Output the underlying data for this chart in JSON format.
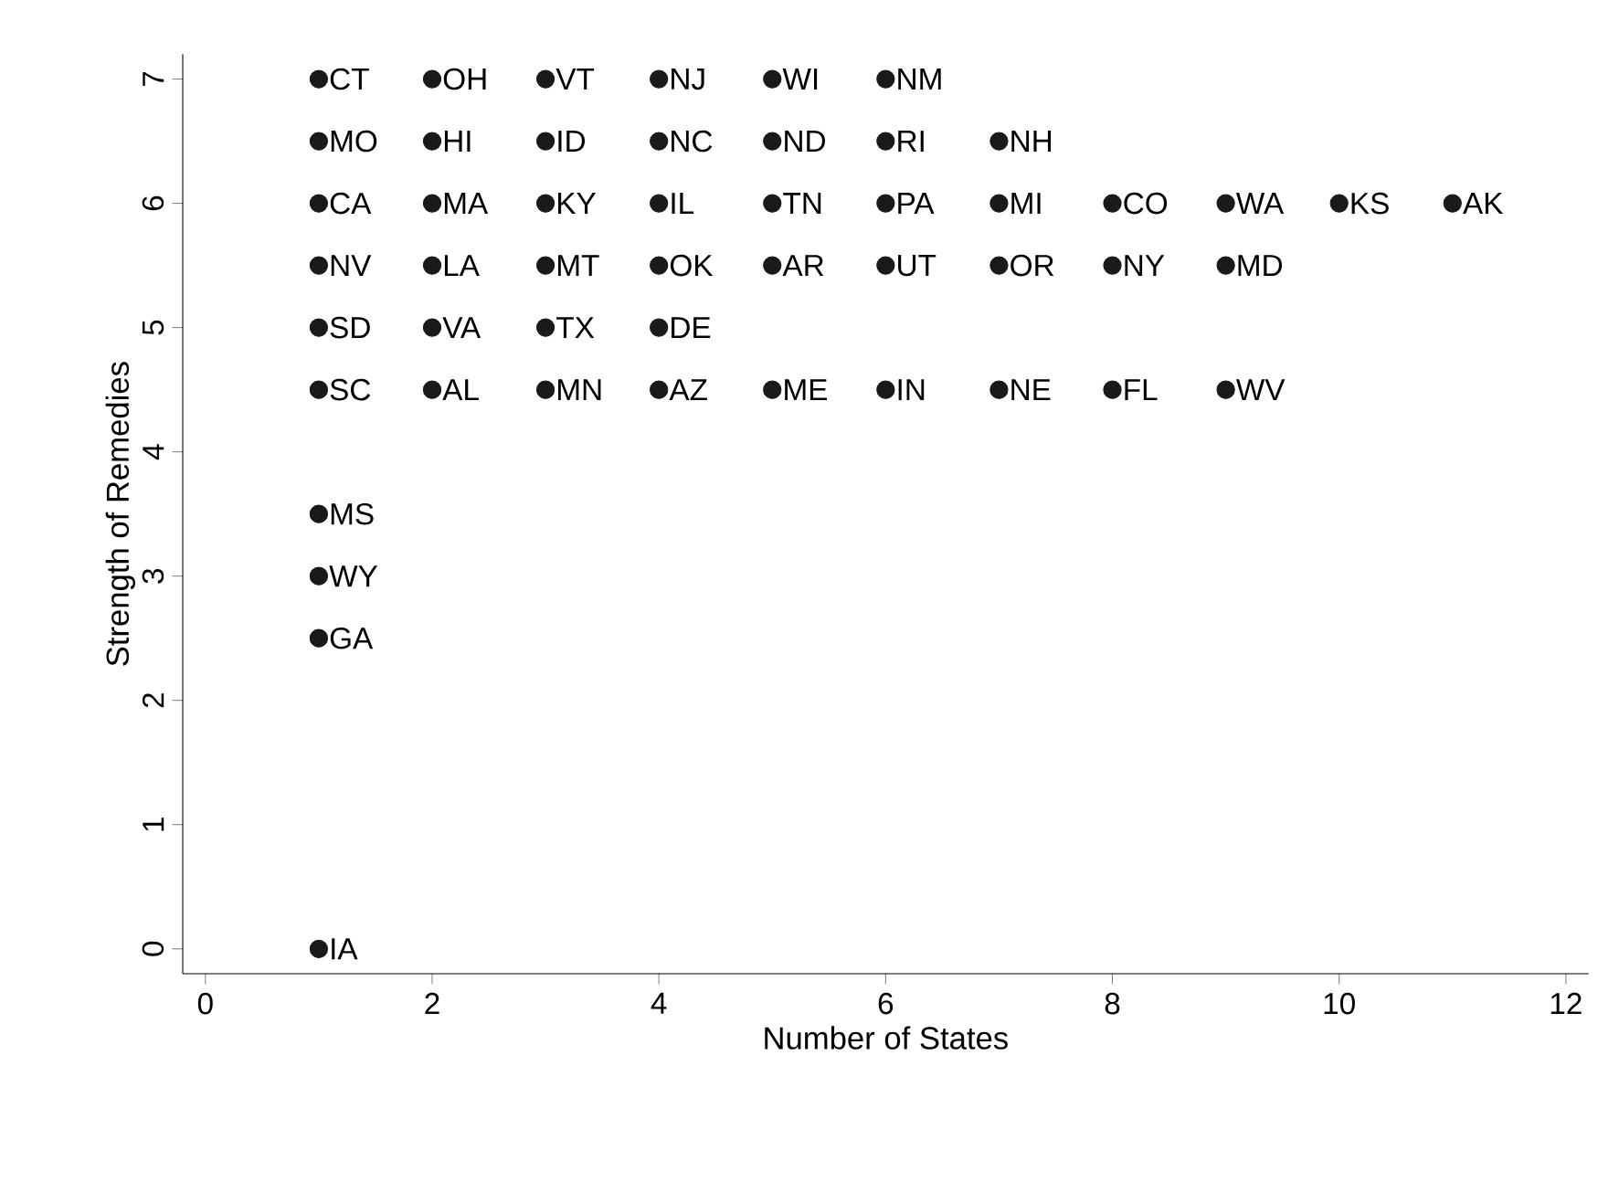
{
  "chart_data": {
    "type": "scatter",
    "xlabel": "Number of States",
    "ylabel": "Strength of Remedies",
    "xlim": [
      -0.2,
      12.2
    ],
    "ylim": [
      -0.2,
      7.2
    ],
    "xticks": [
      0,
      2,
      4,
      6,
      8,
      10,
      12
    ],
    "yticks": [
      0,
      1,
      2,
      3,
      4,
      5,
      6,
      7
    ],
    "grid": false,
    "marker": "circle",
    "series": [
      {
        "color": "#1a1a1a",
        "x": [
          1,
          2,
          3,
          4,
          5,
          6,
          1,
          2,
          3,
          4,
          5,
          6,
          7,
          1,
          2,
          3,
          4,
          5,
          6,
          7,
          8,
          9,
          10,
          11,
          1,
          2,
          3,
          4,
          5,
          6,
          7,
          8,
          9,
          1,
          2,
          3,
          4,
          1,
          2,
          3,
          4,
          5,
          6,
          7,
          8,
          9,
          1,
          1,
          1,
          1
        ],
        "values": [
          7,
          7,
          7,
          7,
          7,
          7,
          6.5,
          6.5,
          6.5,
          6.5,
          6.5,
          6.5,
          6.5,
          6,
          6,
          6,
          6,
          6,
          6,
          6,
          6,
          6,
          6,
          6,
          5.5,
          5.5,
          5.5,
          5.5,
          5.5,
          5.5,
          5.5,
          5.5,
          5.5,
          5,
          5,
          5,
          5,
          4.5,
          4.5,
          4.5,
          4.5,
          4.5,
          4.5,
          4.5,
          4.5,
          4.5,
          3.5,
          3,
          2.5,
          0
        ]
      }
    ],
    "annotations": [
      {
        "text": "CT",
        "x": 1,
        "y": 7
      },
      {
        "text": "OH",
        "x": 2,
        "y": 7
      },
      {
        "text": "VT",
        "x": 3,
        "y": 7
      },
      {
        "text": "NJ",
        "x": 4,
        "y": 7
      },
      {
        "text": "WI",
        "x": 5,
        "y": 7
      },
      {
        "text": "NM",
        "x": 6,
        "y": 7
      },
      {
        "text": "MO",
        "x": 1,
        "y": 6.5
      },
      {
        "text": "HI",
        "x": 2,
        "y": 6.5
      },
      {
        "text": "ID",
        "x": 3,
        "y": 6.5
      },
      {
        "text": "NC",
        "x": 4,
        "y": 6.5
      },
      {
        "text": "ND",
        "x": 5,
        "y": 6.5
      },
      {
        "text": "RI",
        "x": 6,
        "y": 6.5
      },
      {
        "text": "NH",
        "x": 7,
        "y": 6.5
      },
      {
        "text": "CA",
        "x": 1,
        "y": 6
      },
      {
        "text": "MA",
        "x": 2,
        "y": 6
      },
      {
        "text": "KY",
        "x": 3,
        "y": 6
      },
      {
        "text": "IL",
        "x": 4,
        "y": 6
      },
      {
        "text": "TN",
        "x": 5,
        "y": 6
      },
      {
        "text": "PA",
        "x": 6,
        "y": 6
      },
      {
        "text": "MI",
        "x": 7,
        "y": 6
      },
      {
        "text": "CO",
        "x": 8,
        "y": 6
      },
      {
        "text": "WA",
        "x": 9,
        "y": 6
      },
      {
        "text": "KS",
        "x": 10,
        "y": 6
      },
      {
        "text": "AK",
        "x": 11,
        "y": 6
      },
      {
        "text": "NV",
        "x": 1,
        "y": 5.5
      },
      {
        "text": "LA",
        "x": 2,
        "y": 5.5
      },
      {
        "text": "MT",
        "x": 3,
        "y": 5.5
      },
      {
        "text": "OK",
        "x": 4,
        "y": 5.5
      },
      {
        "text": "AR",
        "x": 5,
        "y": 5.5
      },
      {
        "text": "UT",
        "x": 6,
        "y": 5.5
      },
      {
        "text": "OR",
        "x": 7,
        "y": 5.5
      },
      {
        "text": "NY",
        "x": 8,
        "y": 5.5
      },
      {
        "text": "MD",
        "x": 9,
        "y": 5.5
      },
      {
        "text": "SD",
        "x": 1,
        "y": 5
      },
      {
        "text": "VA",
        "x": 2,
        "y": 5
      },
      {
        "text": "TX",
        "x": 3,
        "y": 5
      },
      {
        "text": "DE",
        "x": 4,
        "y": 5
      },
      {
        "text": "SC",
        "x": 1,
        "y": 4.5
      },
      {
        "text": "AL",
        "x": 2,
        "y": 4.5
      },
      {
        "text": "MN",
        "x": 3,
        "y": 4.5
      },
      {
        "text": "AZ",
        "x": 4,
        "y": 4.5
      },
      {
        "text": "ME",
        "x": 5,
        "y": 4.5
      },
      {
        "text": "IN",
        "x": 6,
        "y": 4.5
      },
      {
        "text": "NE",
        "x": 7,
        "y": 4.5
      },
      {
        "text": "FL",
        "x": 8,
        "y": 4.5
      },
      {
        "text": "WV",
        "x": 9,
        "y": 4.5
      },
      {
        "text": "MS",
        "x": 1,
        "y": 3.5
      },
      {
        "text": "WY",
        "x": 1,
        "y": 3
      },
      {
        "text": "GA",
        "x": 1,
        "y": 2.5
      },
      {
        "text": "IA",
        "x": 1,
        "y": 0
      }
    ]
  }
}
